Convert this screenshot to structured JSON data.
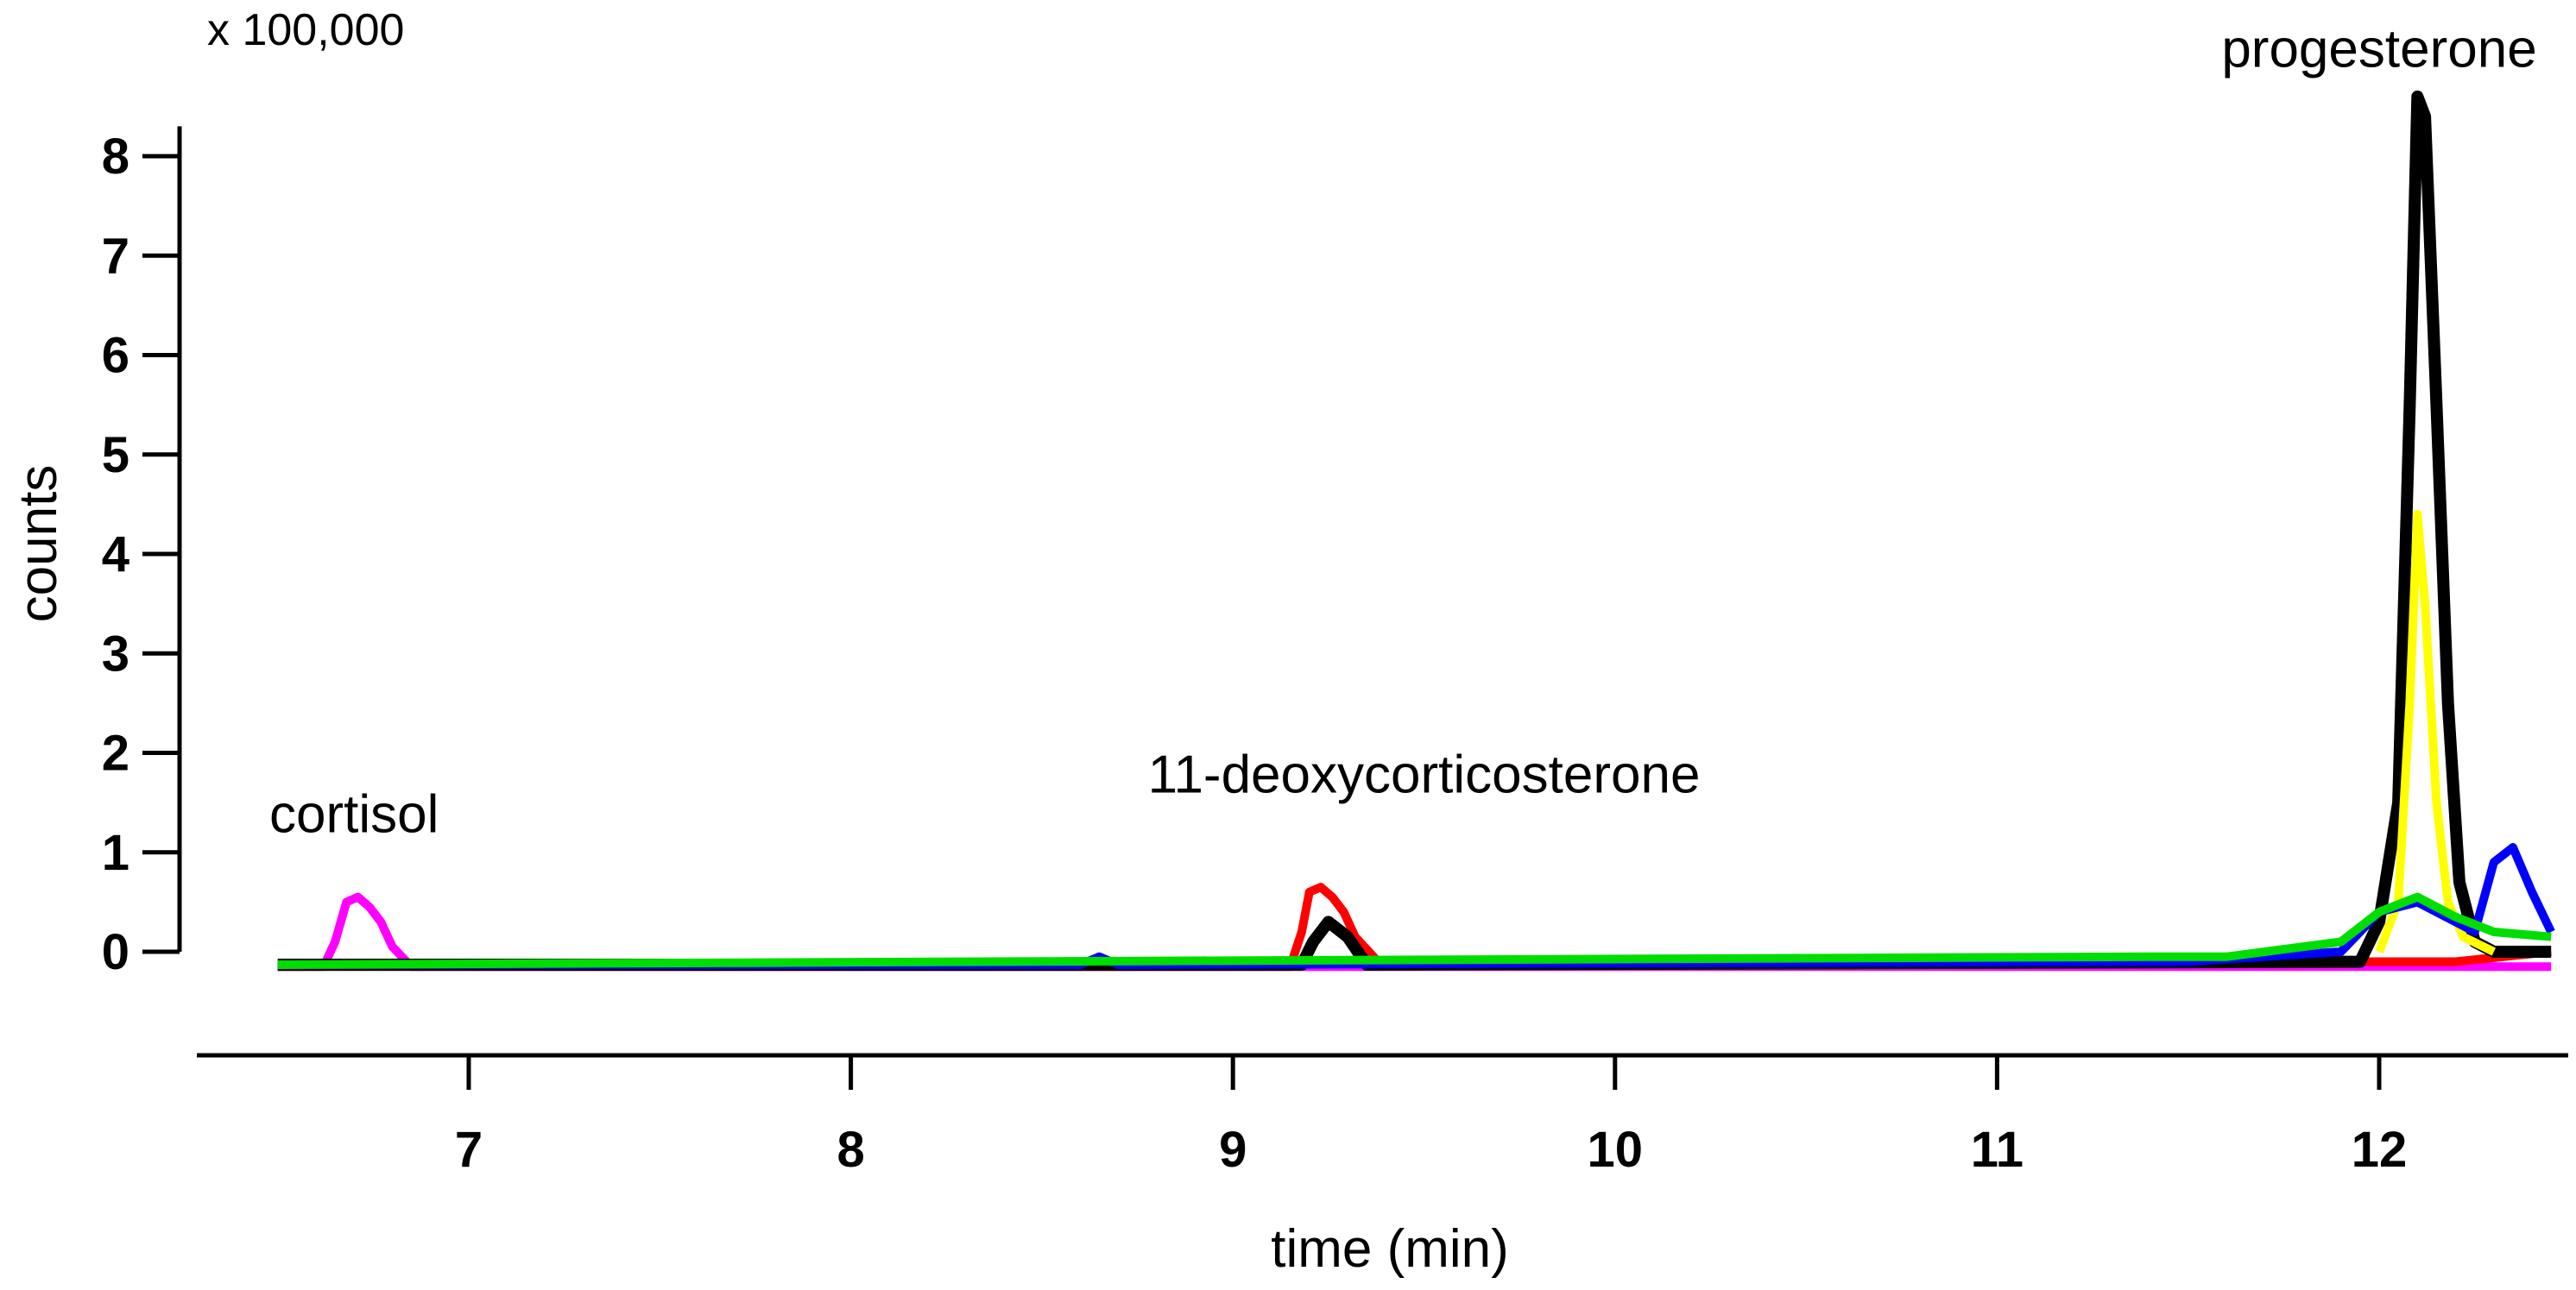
{
  "chart_data": {
    "type": "line",
    "title": "",
    "xlabel": "time (min)",
    "ylabel": "counts",
    "y_multiplier": "x 100,000",
    "xlim": [
      6.5,
      12.5
    ],
    "ylim": [
      -0.1,
      8.5
    ],
    "x_ticks": [
      "7",
      "8",
      "9",
      "10",
      "11",
      "12"
    ],
    "x_tick_values": [
      7,
      8,
      9,
      10,
      11,
      12
    ],
    "y_ticks": [
      "0",
      "1",
      "2",
      "3",
      "4",
      "5",
      "6",
      "7",
      "8"
    ],
    "y_tick_values": [
      0,
      1,
      2,
      3,
      4,
      5,
      6,
      7,
      8
    ],
    "grid": false,
    "annotations": [
      {
        "text": "cortisol",
        "x": 6.7,
        "y": 1.2
      },
      {
        "text": "11-deoxycorticosterone",
        "x": 9.5,
        "y": 1.6
      },
      {
        "text": "progesterone",
        "x": 12.0,
        "y": 8.9
      }
    ],
    "series": [
      {
        "color": "#ff00ff",
        "x": [
          6.5,
          6.62,
          6.65,
          6.68,
          6.71,
          6.74,
          6.77,
          6.8,
          6.85,
          12.45
        ],
        "y": [
          -0.15,
          -0.15,
          0.1,
          0.5,
          0.55,
          0.45,
          0.3,
          0.05,
          -0.15,
          -0.15
        ]
      },
      {
        "color": "#ff0000",
        "x": [
          6.5,
          9.15,
          9.18,
          9.2,
          9.23,
          9.26,
          9.29,
          9.32,
          9.38,
          12.2,
          12.45
        ],
        "y": [
          -0.15,
          -0.15,
          0.2,
          0.6,
          0.65,
          0.55,
          0.4,
          0.15,
          -0.1,
          -0.1,
          0.0
        ]
      },
      {
        "color": "#000000",
        "x": [
          6.5,
          9.18,
          9.21,
          9.25,
          9.3,
          9.35,
          11.95,
          12.0,
          12.05,
          12.08,
          12.1,
          12.12,
          12.15,
          12.18,
          12.21,
          12.25,
          12.3,
          12.45
        ],
        "y": [
          -0.13,
          -0.13,
          0.1,
          0.3,
          0.15,
          -0.13,
          -0.1,
          0.3,
          1.5,
          5.5,
          8.6,
          8.4,
          5.5,
          2.5,
          0.7,
          0.1,
          0.0,
          0.0
        ]
      },
      {
        "color": "#ffff00",
        "x": [
          12.0,
          12.05,
          12.08,
          12.1,
          12.12,
          12.15,
          12.18,
          12.22,
          12.3
        ],
        "y": [
          0.0,
          0.5,
          2.5,
          4.4,
          3.5,
          1.5,
          0.5,
          0.15,
          0.0
        ]
      },
      {
        "color": "#0000ff",
        "x": [
          6.5,
          8.6,
          8.65,
          8.7,
          11.5,
          11.9,
          12.0,
          12.1,
          12.25,
          12.3,
          12.35,
          12.4,
          12.45
        ],
        "y": [
          -0.13,
          -0.13,
          -0.05,
          -0.13,
          -0.1,
          0.0,
          0.4,
          0.5,
          0.2,
          0.9,
          1.05,
          0.6,
          0.2
        ]
      },
      {
        "color": "#00dd00",
        "x": [
          6.5,
          11.4,
          11.6,
          11.9,
          12.0,
          12.1,
          12.2,
          12.3,
          12.45
        ],
        "y": [
          -0.13,
          -0.05,
          -0.05,
          0.1,
          0.4,
          0.55,
          0.35,
          0.2,
          0.15
        ]
      }
    ]
  }
}
